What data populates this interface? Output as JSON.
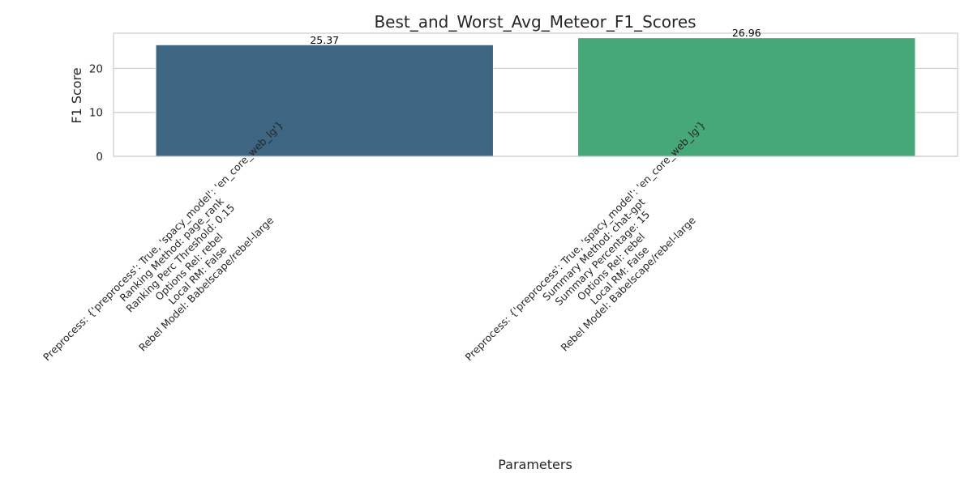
{
  "chart_data": {
    "type": "bar",
    "title": "Best_and_Worst_Avg_Meteor_F1_Scores",
    "xlabel": "Parameters",
    "ylabel": "F1 Score",
    "ylim": [
      0,
      28
    ],
    "yticks": [
      0,
      10,
      20
    ],
    "grid": true,
    "categories": [
      {
        "lines": [
          "Preprocess: {'preprocess': True, 'spacy_model': 'en_core_web_lg'}",
          "Ranking Method: page_rank",
          "Ranking Perc Threshold: 0.15",
          "Options Rel: rebel",
          "Local RM: False",
          "Rebel Model: Babelscape/rebel-large"
        ]
      },
      {
        "lines": [
          "Preprocess: {'preprocess': True, 'spacy_model': 'en_core_web_lg'}",
          "Summary Method: chat-gpt",
          "Summary Percentage: 15",
          "Options Rel: rebel",
          "Local RM: False",
          "Rebel Model: Babelscape/rebel-large"
        ]
      }
    ],
    "values": [
      25.37,
      26.96
    ],
    "value_labels": [
      "25.37",
      "26.96"
    ],
    "colors": [
      "#3e6582",
      "#46a777"
    ]
  }
}
